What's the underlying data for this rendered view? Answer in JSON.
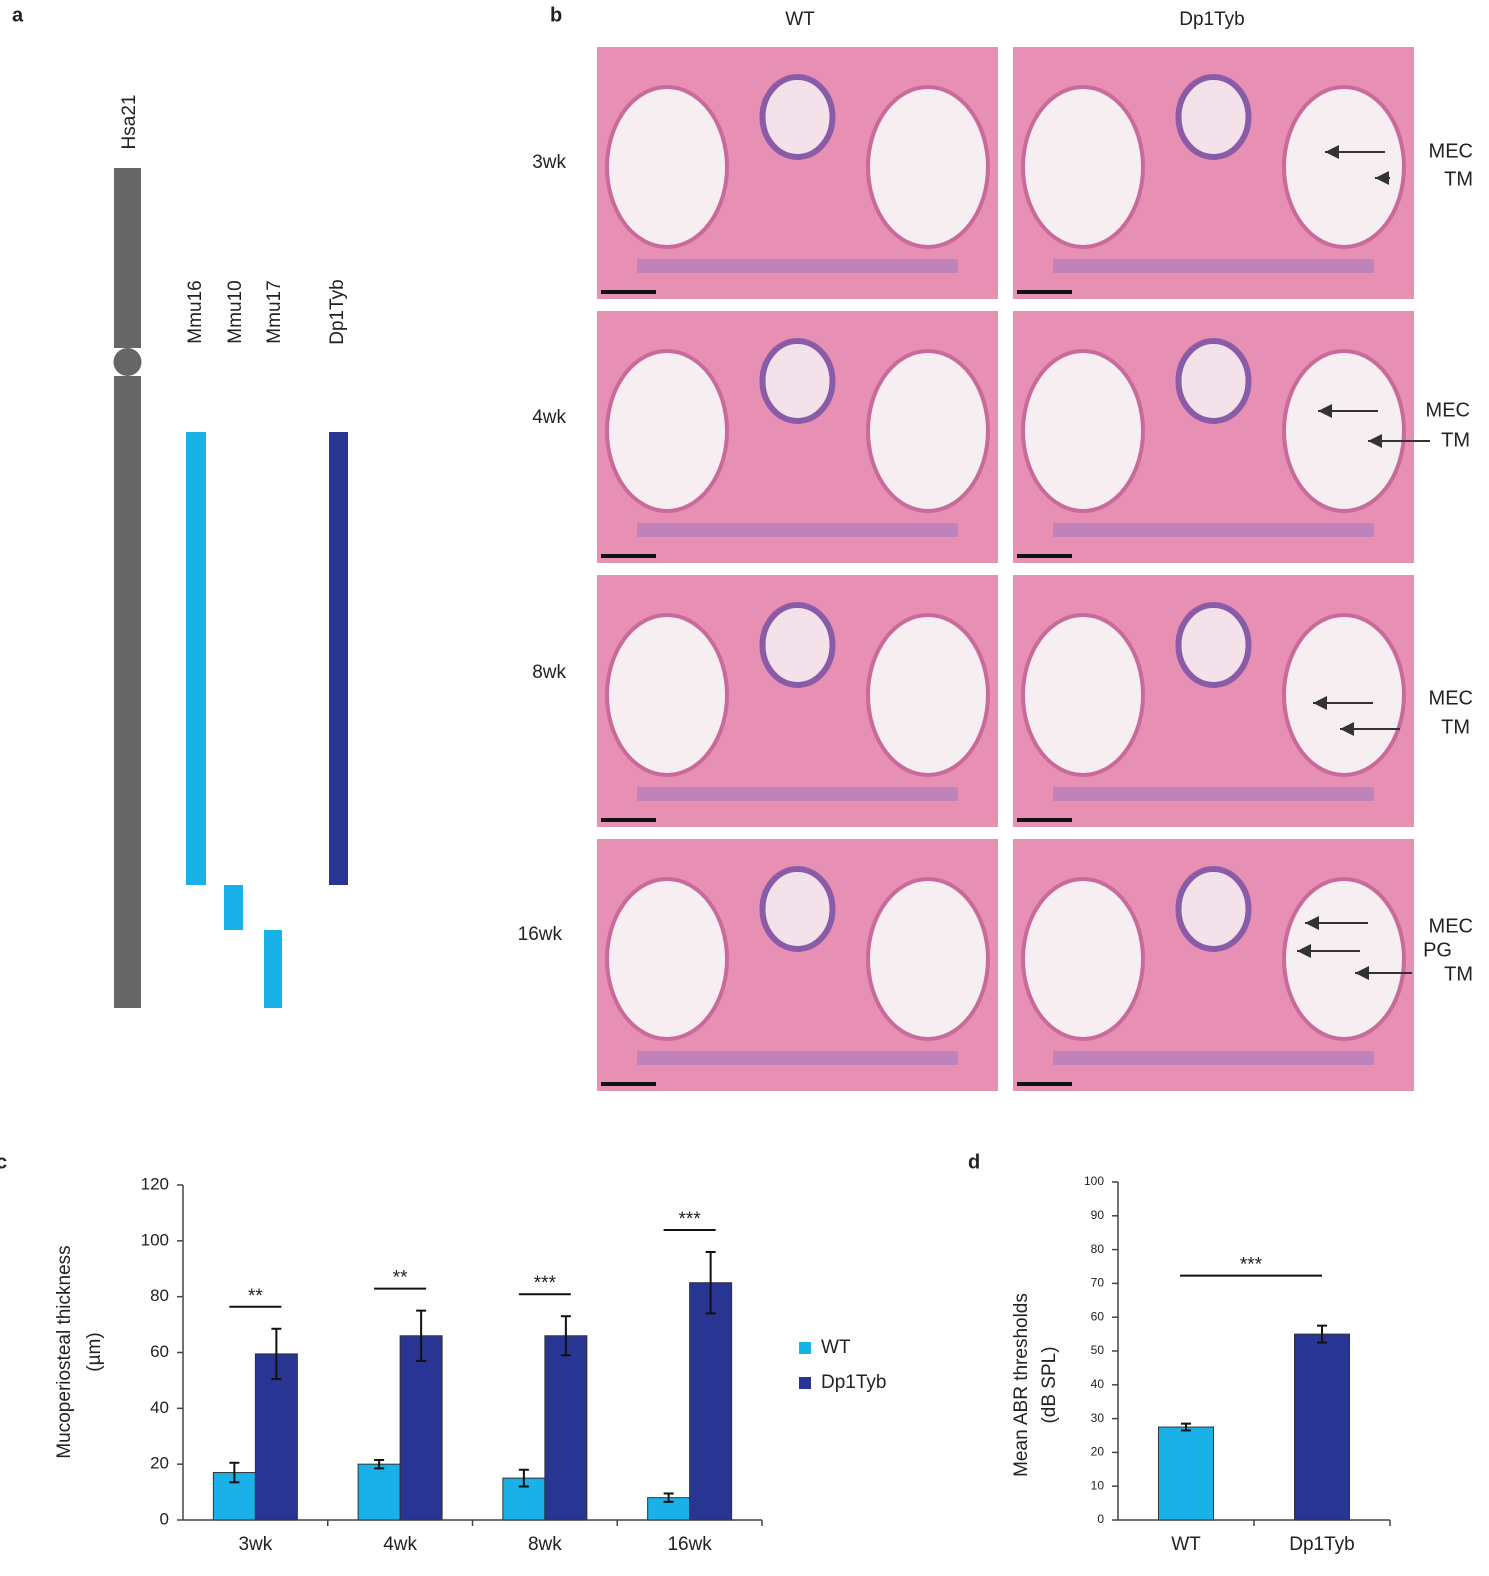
{
  "panel_a": {
    "label": "a",
    "tracks": [
      "Hsa21",
      "Mmu16",
      "Mmu10",
      "Mmu17",
      "Dp1Tyb"
    ]
  },
  "panel_b": {
    "label": "b",
    "columns": [
      "WT",
      "Dp1Tyb"
    ],
    "rows": [
      {
        "label": "3wk",
        "annotations": [
          "MEC",
          "TM"
        ]
      },
      {
        "label": "4wk",
        "annotations": [
          "MEC",
          "TM"
        ]
      },
      {
        "label": "8wk",
        "annotations": [
          "MEC",
          "TM"
        ]
      },
      {
        "label": "16wk",
        "annotations": [
          "MEC",
          "PG",
          "TM"
        ]
      }
    ]
  },
  "chart_data": [
    {
      "type": "bar",
      "panel_label": "c",
      "y_label": [
        "Mucoperiosteal thickness",
        "(µm)"
      ],
      "categories": [
        "3wk",
        "4wk",
        "8wk",
        "16wk"
      ],
      "series": [
        {
          "name": "WT",
          "color": "#1ab0e8",
          "values": [
            17,
            20,
            15,
            8
          ],
          "errors": [
            3.5,
            1.5,
            3,
            1.5
          ]
        },
        {
          "name": "Dp1Tyb",
          "color": "#283593",
          "values": [
            59.5,
            66,
            66,
            85
          ],
          "errors": [
            9,
            9,
            7,
            11
          ]
        }
      ],
      "significance": [
        "**",
        "**",
        "***",
        "***"
      ],
      "ylim": [
        0,
        120
      ],
      "yticks": [
        0,
        20,
        40,
        60,
        80,
        100,
        120
      ],
      "legend": "right"
    },
    {
      "type": "bar",
      "panel_label": "d",
      "y_label": [
        "Mean ABR thresholds",
        "(dB SPL)"
      ],
      "categories": [
        "WT",
        "Dp1Tyb"
      ],
      "values": [
        27.5,
        55
      ],
      "errors": [
        1,
        2.5
      ],
      "colors": [
        "#1ab0e8",
        "#283593"
      ],
      "significance": "***",
      "ylim": [
        0,
        100
      ],
      "yticks": [
        0,
        10,
        20,
        30,
        40,
        50,
        60,
        70,
        80,
        90,
        100
      ]
    }
  ]
}
